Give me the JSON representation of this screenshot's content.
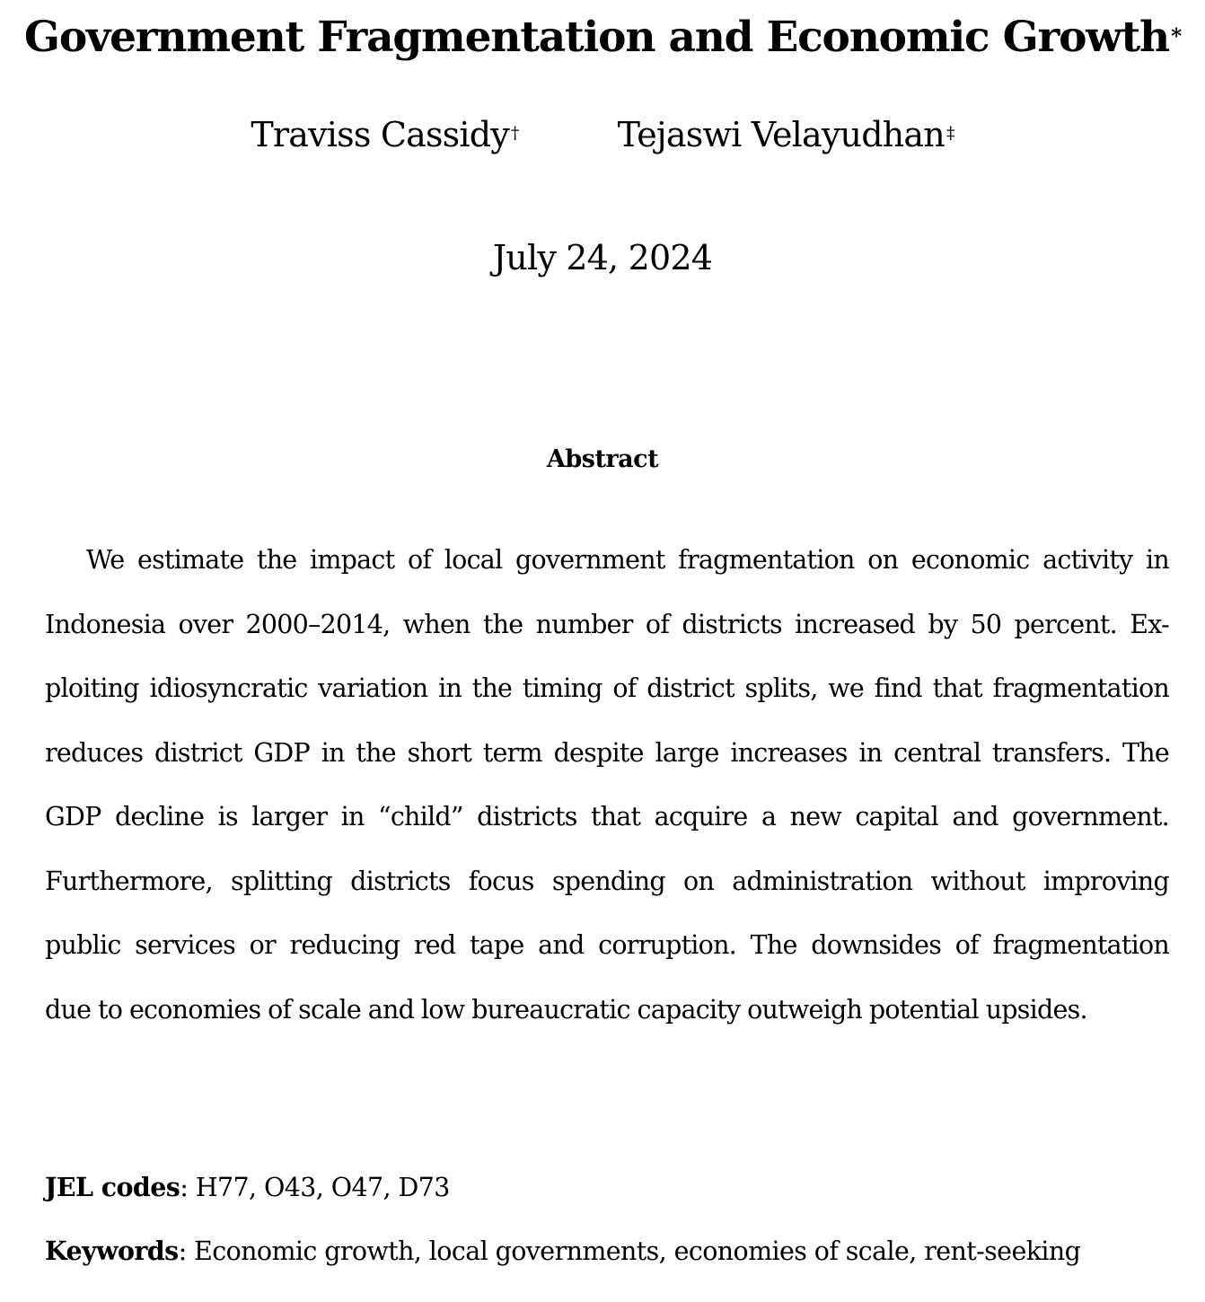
{
  "paper": {
    "title": "Government Fragmentation and Economic Growth",
    "title_mark": "*",
    "authors": [
      {
        "name": "Traviss Cassidy",
        "mark": "†"
      },
      {
        "name": "Tejaswi Velayudhan",
        "mark": "‡"
      }
    ],
    "date": "July 24, 2024",
    "abstract_heading": "Abstract",
    "abstract_lines": [
      "We estimate the impact of local government fragmentation on economic activity in",
      "Indonesia over 2000–2014, when the number of districts increased by 50 percent. Ex-",
      "ploiting idiosyncratic variation in the timing of district splits, we find that fragmentation",
      "reduces district GDP in the short term despite large increases in central transfers. The",
      "GDP decline is larger in “child” districts that acquire a new capital and government.",
      "Furthermore, splitting districts focus spending on administration without improving",
      "public services or reducing red tape and corruption. The downsides of fragmentation",
      "due to economies of scale and low bureaucratic capacity outweigh potential upsides."
    ],
    "jel": {
      "label": "JEL codes",
      "value": "H77, O43, O47, D73"
    },
    "keywords": {
      "label": "Keywords",
      "value": "Economic growth, local governments, economies of scale, rent-seeking"
    }
  }
}
